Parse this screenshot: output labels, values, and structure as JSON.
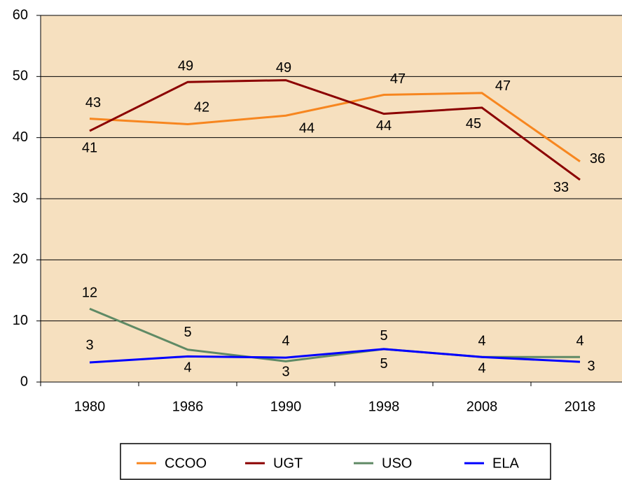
{
  "chart_data": {
    "type": "line",
    "categories": [
      "1980",
      "1986",
      "1990",
      "1998",
      "2008",
      "2018"
    ],
    "series": [
      {
        "name": "CCOO",
        "color": "#f7861f",
        "values": [
          43.1,
          42.2,
          43.6,
          47.0,
          47.3,
          36.1
        ],
        "value_labels": [
          "43",
          "42",
          "44",
          "47",
          "47",
          "36"
        ]
      },
      {
        "name": "UGT",
        "color": "#8b0000",
        "values": [
          41.1,
          49.1,
          49.4,
          43.9,
          44.9,
          33.1
        ],
        "value_labels": [
          "41",
          "49",
          "49",
          "44",
          "45",
          "33"
        ]
      },
      {
        "name": "USO",
        "color": "#5f8a65",
        "values": [
          12.0,
          5.3,
          3.4,
          5.4,
          4.1,
          4.1
        ],
        "value_labels": [
          "12",
          "5",
          "3",
          "5",
          "4",
          "4"
        ]
      },
      {
        "name": "ELA",
        "color": "#0000ff",
        "values": [
          3.2,
          4.2,
          4.0,
          5.4,
          4.1,
          3.3
        ],
        "value_labels": [
          "3",
          "4",
          "4",
          "5",
          "4",
          "3"
        ]
      }
    ],
    "ylim": [
      0,
      60
    ],
    "yticks": [
      0,
      10,
      20,
      30,
      40,
      50,
      60
    ],
    "grid": true,
    "legend": "bottom"
  }
}
